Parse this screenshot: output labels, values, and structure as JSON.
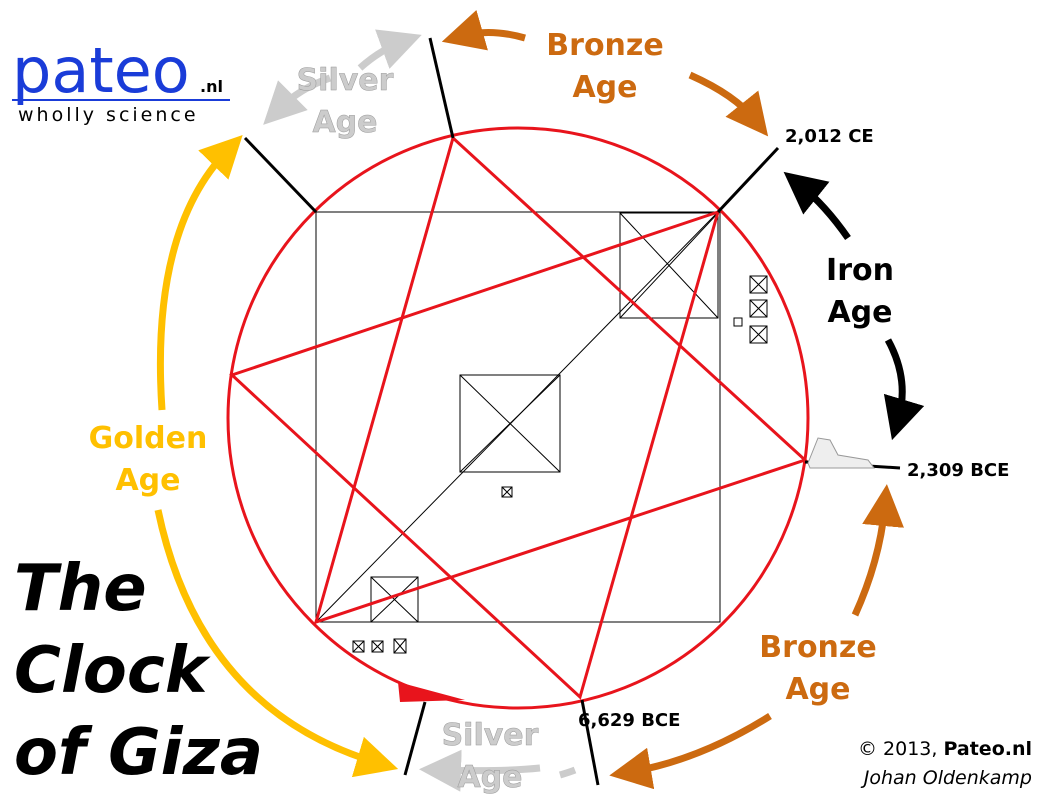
{
  "logo": {
    "name": "pateo",
    "suffix": ".nl",
    "tagline": "wholly science"
  },
  "title": {
    "lines": [
      "The",
      "Clock",
      "of Giza"
    ]
  },
  "ages": [
    {
      "lines": [
        "Silver",
        "Age"
      ]
    },
    {
      "lines": [
        "Bronze",
        "Age"
      ]
    },
    {
      "lines": [
        "Iron",
        "Age"
      ]
    },
    {
      "lines": [
        "Bronze",
        "Age"
      ]
    },
    {
      "lines": [
        "Silver",
        "Age"
      ]
    },
    {
      "lines": [
        "Golden",
        "Age"
      ]
    }
  ],
  "dates": [
    "2,012 CE",
    "2,309 BCE",
    "6,629 BCE"
  ],
  "credit": {
    "copyright": "© 2013, ",
    "site": "Pateo.nl",
    "author": "Johan Oldenkamp"
  }
}
